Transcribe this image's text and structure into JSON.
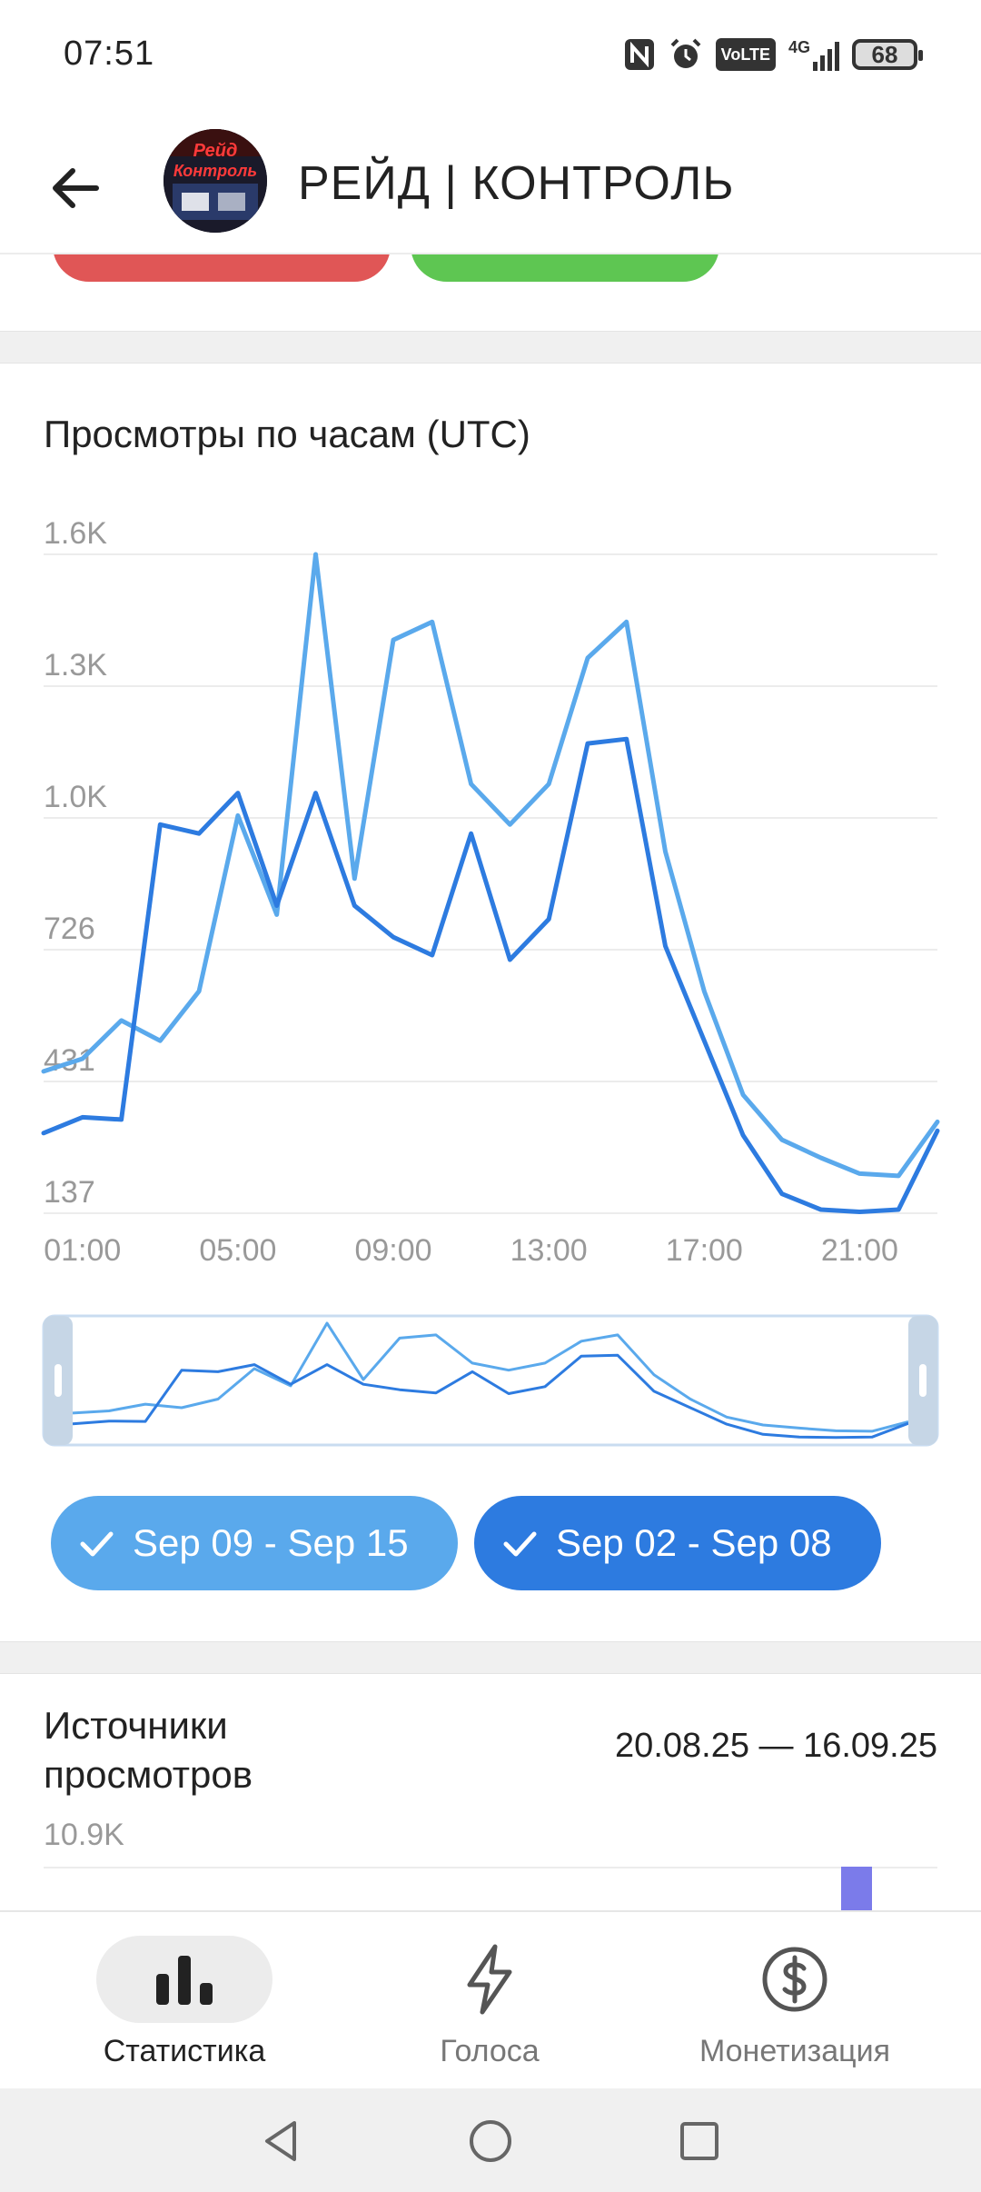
{
  "status_bar": {
    "time": "07:51",
    "icons": [
      "nfc-icon",
      "alarm-icon",
      "volte-icon",
      "signal-4g-icon"
    ],
    "volte": "VoLTE",
    "network": "4G",
    "battery": "68"
  },
  "header": {
    "title": "РЕЙД | КОНТРОЛЬ",
    "avatar_text": [
      "Рейд",
      "Контроль"
    ]
  },
  "views_chart": {
    "title": "Просмотры по часам (UTC)"
  },
  "chart_data": {
    "type": "line",
    "title": "Просмотры по часам (UTC)",
    "x": [
      "00:00",
      "01:00",
      "02:00",
      "03:00",
      "04:00",
      "05:00",
      "06:00",
      "07:00",
      "08:00",
      "09:00",
      "10:00",
      "11:00",
      "12:00",
      "13:00",
      "14:00",
      "15:00",
      "16:00",
      "17:00",
      "18:00",
      "19:00",
      "20:00",
      "21:00",
      "22:00",
      "23:00"
    ],
    "x_tick_labels": [
      "01:00",
      "05:00",
      "09:00",
      "13:00",
      "17:00",
      "21:00"
    ],
    "y_tick_labels": [
      "137",
      "431",
      "726",
      "1.0K",
      "1.3K",
      "1.6K"
    ],
    "ylim": [
      137,
      1600
    ],
    "series": [
      {
        "name": "Sep 09 - Sep 15",
        "color": "#5aa9ec",
        "values": [
          452,
          480,
          565,
          520,
          630,
          1020,
          800,
          1600,
          880,
          1410,
          1450,
          1090,
          1000,
          1090,
          1370,
          1450,
          940,
          630,
          400,
          300,
          260,
          225,
          220,
          340
        ]
      },
      {
        "name": "Sep 02 - Sep 08",
        "color": "#2d7be0",
        "values": [
          315,
          350,
          345,
          1000,
          980,
          1070,
          820,
          1070,
          820,
          750,
          710,
          980,
          700,
          790,
          1180,
          1190,
          730,
          520,
          310,
          180,
          145,
          140,
          145,
          320
        ]
      }
    ],
    "grid": true
  },
  "period_chips": [
    {
      "label": "Sep 09 - Sep 15",
      "color": "#5aa9ec"
    },
    {
      "label": "Sep 02 - Sep 08",
      "color": "#2d7be0"
    }
  ],
  "sources": {
    "title": "Источники просмотров",
    "date_range": "20.08.25 — 16.09.25",
    "y_top": "10.9K",
    "bar_color": "#7b7bea"
  },
  "bottom_nav": {
    "items": [
      {
        "label": "Статистика",
        "icon": "bar-chart-icon",
        "active": true
      },
      {
        "label": "Голоса",
        "icon": "lightning-icon",
        "active": false
      },
      {
        "label": "Монетизация",
        "icon": "dollar-icon",
        "active": false
      }
    ]
  },
  "system_nav": [
    "back-triangle-icon",
    "home-circle-icon",
    "recents-square-icon"
  ]
}
